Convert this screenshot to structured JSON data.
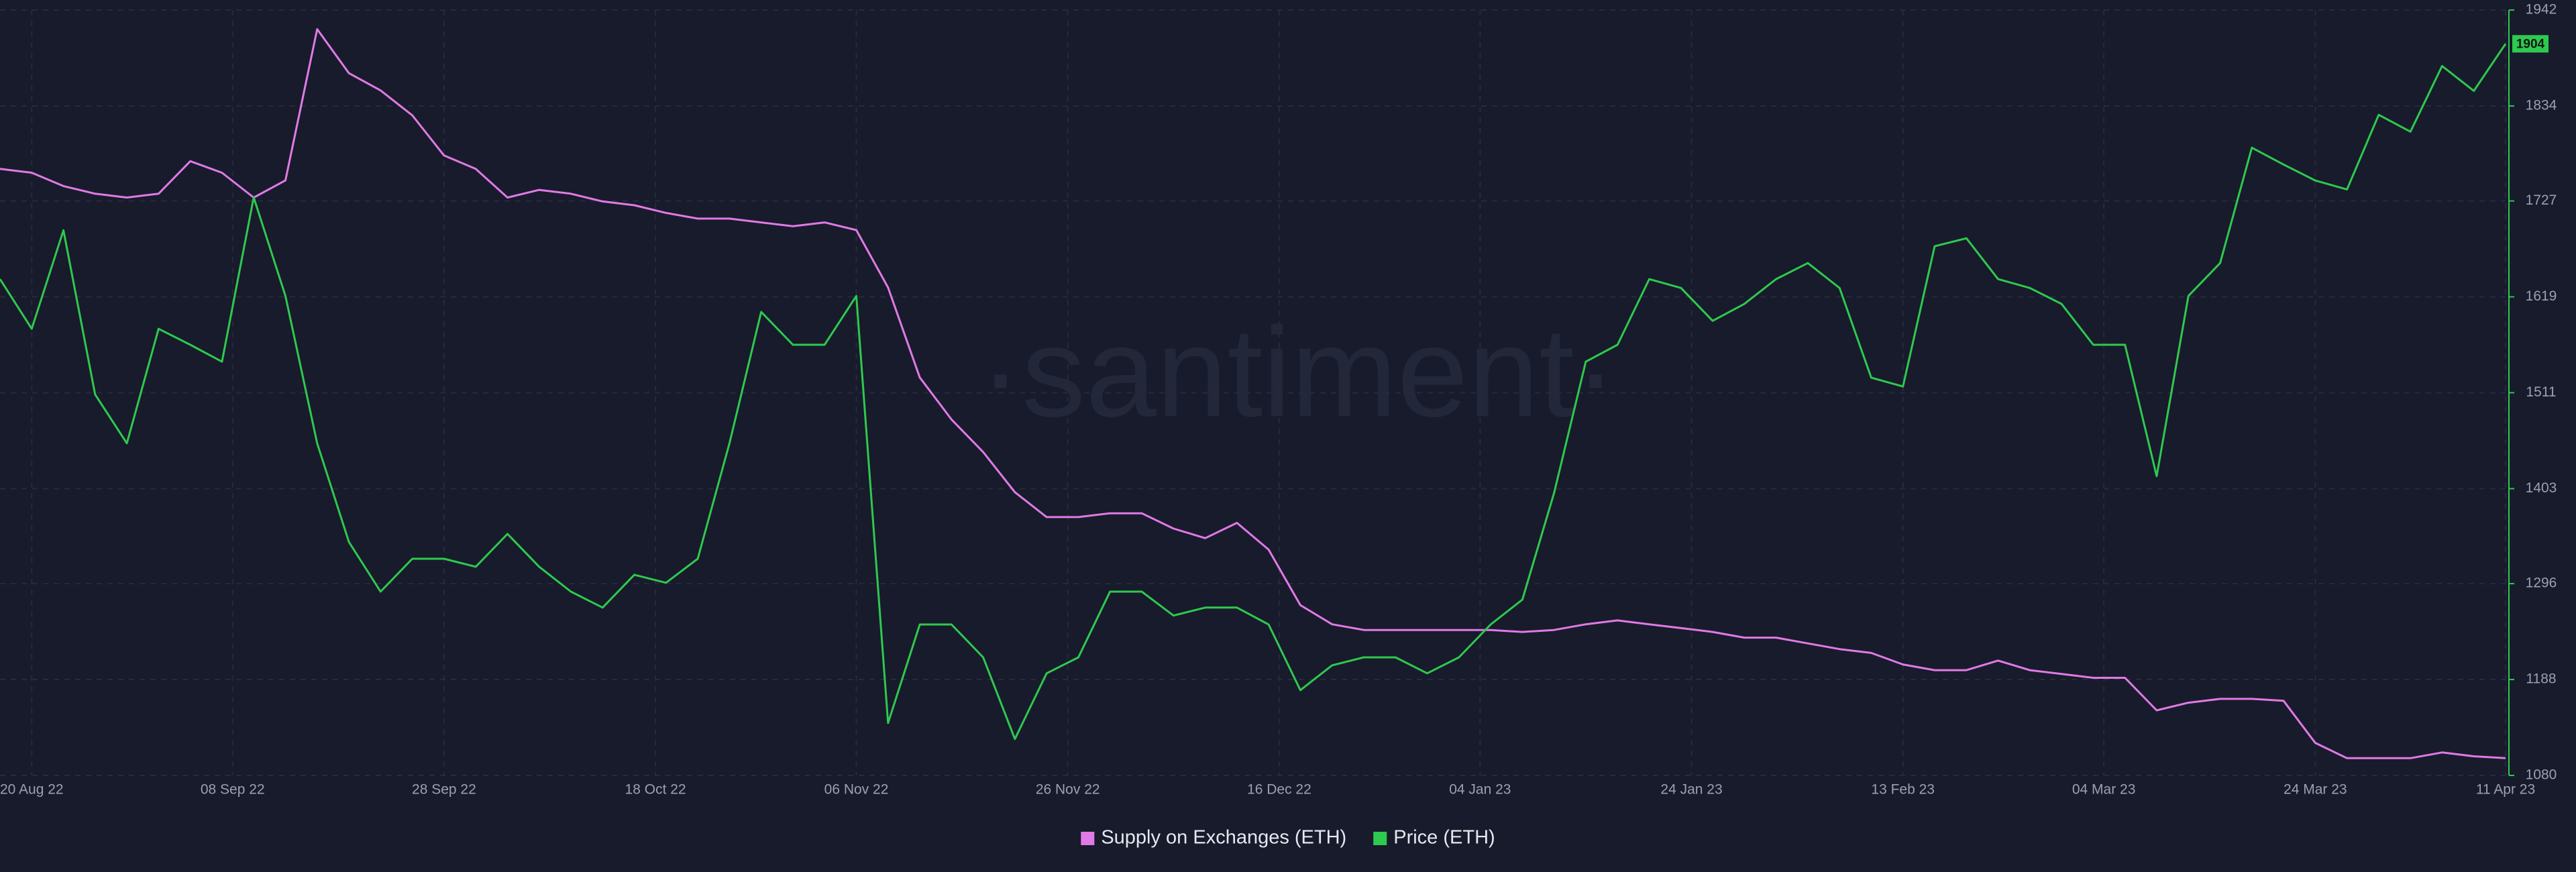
{
  "chart_data": {
    "type": "line",
    "watermark": "·santiment·",
    "x": [
      "2022-08-17",
      "2022-08-20",
      "2022-08-23",
      "2022-08-26",
      "2022-08-29",
      "2022-09-01",
      "2022-09-04",
      "2022-09-07",
      "2022-09-10",
      "2022-09-13",
      "2022-09-16",
      "2022-09-19",
      "2022-09-22",
      "2022-09-25",
      "2022-09-28",
      "2022-10-01",
      "2022-10-04",
      "2022-10-07",
      "2022-10-10",
      "2022-10-13",
      "2022-10-16",
      "2022-10-19",
      "2022-10-22",
      "2022-10-25",
      "2022-10-28",
      "2022-10-31",
      "2022-11-03",
      "2022-11-06",
      "2022-11-09",
      "2022-11-12",
      "2022-11-15",
      "2022-11-18",
      "2022-11-21",
      "2022-11-24",
      "2022-11-27",
      "2022-11-30",
      "2022-12-03",
      "2022-12-06",
      "2022-12-09",
      "2022-12-12",
      "2022-12-15",
      "2022-12-18",
      "2022-12-21",
      "2022-12-24",
      "2022-12-27",
      "2022-12-30",
      "2023-01-02",
      "2023-01-05",
      "2023-01-08",
      "2023-01-11",
      "2023-01-14",
      "2023-01-17",
      "2023-01-20",
      "2023-01-23",
      "2023-01-26",
      "2023-01-29",
      "2023-02-01",
      "2023-02-04",
      "2023-02-07",
      "2023-02-10",
      "2023-02-13",
      "2023-02-16",
      "2023-02-19",
      "2023-02-22",
      "2023-02-25",
      "2023-02-28",
      "2023-03-03",
      "2023-03-06",
      "2023-03-09",
      "2023-03-12",
      "2023-03-15",
      "2023-03-18",
      "2023-03-21",
      "2023-03-24",
      "2023-03-27",
      "2023-03-30",
      "2023-04-02",
      "2023-04-05",
      "2023-04-08",
      "2023-04-11"
    ],
    "xlim": [
      "2022-08-17",
      "2023-04-11"
    ],
    "xticks": [
      {
        "value": "2022-08-20",
        "label": "20 Aug 22"
      },
      {
        "value": "2022-09-08",
        "label": "08 Sep 22"
      },
      {
        "value": "2022-09-28",
        "label": "28 Sep 22"
      },
      {
        "value": "2022-10-18",
        "label": "18 Oct 22"
      },
      {
        "value": "2022-11-06",
        "label": "06 Nov 22"
      },
      {
        "value": "2022-11-26",
        "label": "26 Nov 22"
      },
      {
        "value": "2022-12-16",
        "label": "16 Dec 22"
      },
      {
        "value": "2023-01-04",
        "label": "04 Jan 23"
      },
      {
        "value": "2023-01-24",
        "label": "24 Jan 23"
      },
      {
        "value": "2023-02-13",
        "label": "13 Feb 23"
      },
      {
        "value": "2023-03-04",
        "label": "04 Mar 23"
      },
      {
        "value": "2023-03-24",
        "label": "24 Mar 23"
      },
      {
        "value": "2023-04-11",
        "label": "11 Apr 23"
      }
    ],
    "ylim": [
      16.0,
      20.0
    ],
    "y2lim": [
      1080,
      1942
    ],
    "y2ticks": [
      1080,
      1188,
      1296,
      1403,
      1511,
      1619,
      1727,
      1834,
      1942
    ],
    "grid": true,
    "legend": "bottom",
    "series": [
      {
        "name": "Supply on Exchanges (ETH)",
        "color": "#e07ae6",
        "values": [
          19.17,
          19.15,
          19.08,
          19.04,
          19.02,
          19.04,
          19.21,
          19.15,
          19.02,
          19.11,
          19.9,
          19.67,
          19.58,
          19.45,
          19.24,
          19.17,
          19.02,
          19.06,
          19.04,
          19.0,
          18.98,
          18.94,
          18.91,
          18.91,
          18.89,
          18.87,
          18.89,
          18.85,
          18.55,
          18.08,
          17.86,
          17.69,
          17.48,
          17.35,
          17.35,
          17.37,
          17.37,
          17.29,
          17.24,
          17.32,
          17.18,
          16.89,
          16.79,
          16.76,
          16.76,
          16.76,
          16.76,
          16.76,
          16.75,
          16.76,
          16.79,
          16.81,
          16.79,
          16.77,
          16.75,
          16.72,
          16.72,
          16.69,
          16.66,
          16.64,
          16.58,
          16.55,
          16.55,
          16.6,
          16.55,
          16.53,
          16.51,
          16.51,
          16.34,
          16.38,
          16.4,
          16.4,
          16.39,
          16.17,
          16.09,
          16.09,
          16.09,
          16.12,
          16.1,
          16.09
        ]
      },
      {
        "name": "Price (ETH)",
        "color": "#2ec94f",
        "axis": "y2",
        "values": [
          1639,
          1583,
          1694,
          1509,
          1454,
          1583,
          1565,
          1546,
          1731,
          1620,
          1454,
          1343,
          1287,
          1324,
          1324,
          1315,
          1352,
          1315,
          1287,
          1269,
          1306,
          1297,
          1324,
          1454,
          1602,
          1565,
          1565,
          1620,
          1139,
          1250,
          1250,
          1213,
          1121,
          1195,
          1213,
          1287,
          1287,
          1260,
          1269,
          1269,
          1250,
          1176,
          1204,
          1213,
          1213,
          1195,
          1213,
          1250,
          1278,
          1398,
          1546,
          1565,
          1639,
          1629,
          1592,
          1611,
          1639,
          1657,
          1629,
          1528,
          1518,
          1676,
          1685,
          1639,
          1629,
          1611,
          1565,
          1565,
          1417,
          1620,
          1657,
          1787,
          1768,
          1750,
          1740,
          1824,
          1805,
          1879,
          1851,
          1904
        ]
      }
    ]
  }
}
